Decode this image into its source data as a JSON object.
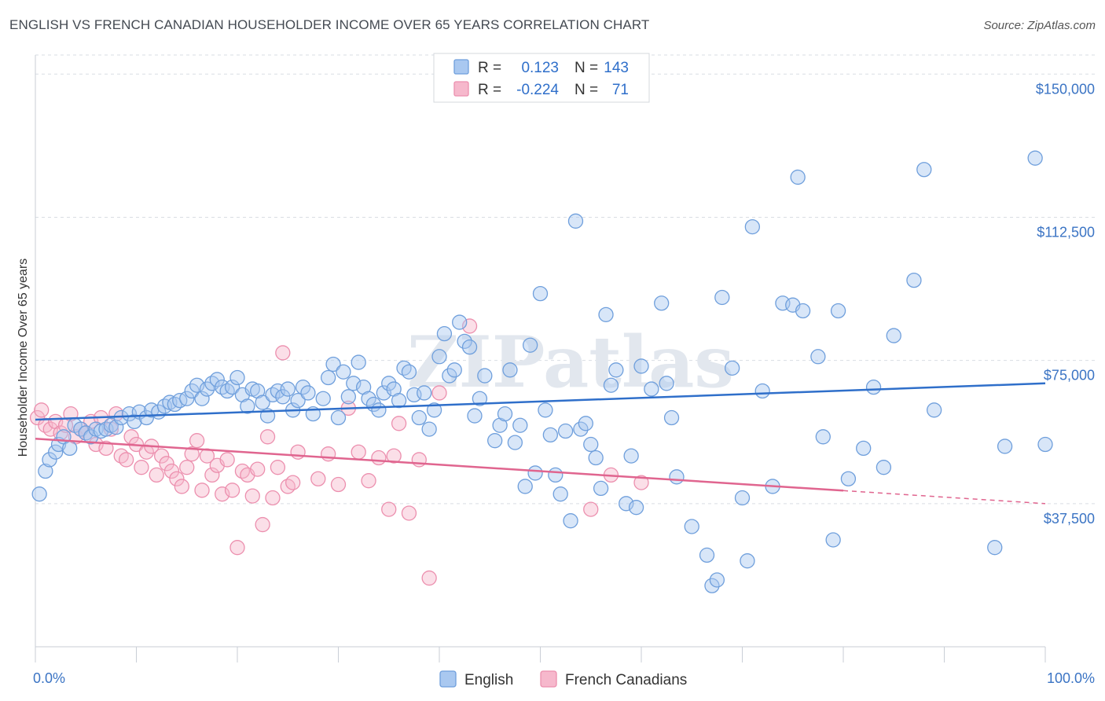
{
  "title": "ENGLISH VS FRENCH CANADIAN HOUSEHOLDER INCOME OVER 65 YEARS CORRELATION CHART",
  "source": "Source: ZipAtlas.com",
  "watermark": "ZIPatlas",
  "colors": {
    "english_fill": "#a9c8f0",
    "english_stroke": "#6f9fdc",
    "english_line": "#2f6fca",
    "french_fill": "#f6b8cc",
    "french_stroke": "#ec8fae",
    "french_line": "#e0658f",
    "axis_label": "#3b74c4",
    "grid": "#d9dde3"
  },
  "legend": {
    "rows": [
      {
        "r_label": "R =",
        "r_value": "0.123",
        "n_label": "N =",
        "n_value": "143"
      },
      {
        "r_label": "R =",
        "r_value": "-0.224",
        "n_label": "N =",
        "n_value": "71"
      }
    ]
  },
  "chart_data": {
    "type": "scatter",
    "title": "ENGLISH VS FRENCH CANADIAN HOUSEHOLDER INCOME OVER 65 YEARS CORRELATION CHART",
    "xlabel": "",
    "ylabel": "Householder Income Over 65 years",
    "xlim": [
      0,
      100
    ],
    "ylim": [
      0,
      155000
    ],
    "x_tick_labels": [
      "0.0%",
      "100.0%"
    ],
    "y_ticks": [
      37500,
      75000,
      112500,
      150000
    ],
    "y_tick_labels": [
      "$37,500",
      "$75,000",
      "$112,500",
      "$150,000"
    ],
    "grid": true,
    "legend_position": "top-center",
    "series": [
      {
        "name": "English",
        "r": 0.123,
        "n": 143,
        "trend": {
          "x": [
            0,
            100
          ],
          "y": [
            59500,
            69000
          ]
        },
        "points": [
          [
            0.4,
            40000
          ],
          [
            1,
            46000
          ],
          [
            1.4,
            49000
          ],
          [
            2,
            51000
          ],
          [
            2.3,
            53000
          ],
          [
            2.8,
            55000
          ],
          [
            3.4,
            52000
          ],
          [
            3.9,
            58000
          ],
          [
            4.5,
            57000
          ],
          [
            5,
            56000
          ],
          [
            5.5,
            55000
          ],
          [
            6,
            57000
          ],
          [
            6.5,
            56500
          ],
          [
            7,
            57000
          ],
          [
            7.5,
            58000
          ],
          [
            8,
            57500
          ],
          [
            8.5,
            60000
          ],
          [
            9.3,
            61000
          ],
          [
            9.8,
            59000
          ],
          [
            10.3,
            61500
          ],
          [
            11,
            60000
          ],
          [
            11.5,
            62000
          ],
          [
            12.2,
            61500
          ],
          [
            12.8,
            63000
          ],
          [
            13.3,
            64000
          ],
          [
            13.8,
            63500
          ],
          [
            14.3,
            64500
          ],
          [
            15,
            65000
          ],
          [
            15.5,
            67000
          ],
          [
            16,
            68500
          ],
          [
            16.5,
            65000
          ],
          [
            17,
            67500
          ],
          [
            17.5,
            69000
          ],
          [
            18,
            70000
          ],
          [
            18.5,
            68000
          ],
          [
            19,
            67000
          ],
          [
            19.5,
            68000
          ],
          [
            20,
            70500
          ],
          [
            20.5,
            66000
          ],
          [
            21,
            63000
          ],
          [
            21.5,
            67500
          ],
          [
            22,
            67000
          ],
          [
            22.5,
            64000
          ],
          [
            23,
            60500
          ],
          [
            23.5,
            66000
          ],
          [
            24,
            67000
          ],
          [
            24.5,
            65500
          ],
          [
            25,
            67500
          ],
          [
            25.5,
            62000
          ],
          [
            26,
            64500
          ],
          [
            26.5,
            68000
          ],
          [
            27,
            66500
          ],
          [
            27.5,
            61000
          ],
          [
            28.5,
            65000
          ],
          [
            29,
            70500
          ],
          [
            29.5,
            74000
          ],
          [
            30,
            60000
          ],
          [
            30.5,
            72000
          ],
          [
            31,
            65500
          ],
          [
            31.5,
            69000
          ],
          [
            32,
            74500
          ],
          [
            32.5,
            68000
          ],
          [
            33,
            65000
          ],
          [
            33.5,
            63500
          ],
          [
            34,
            62000
          ],
          [
            34.5,
            66500
          ],
          [
            35,
            69000
          ],
          [
            35.5,
            67500
          ],
          [
            36,
            64500
          ],
          [
            36.5,
            73000
          ],
          [
            37,
            72000
          ],
          [
            37.5,
            66000
          ],
          [
            38,
            60000
          ],
          [
            38.5,
            66500
          ],
          [
            39,
            57000
          ],
          [
            39.5,
            62000
          ],
          [
            40,
            76000
          ],
          [
            40.5,
            82000
          ],
          [
            41,
            71000
          ],
          [
            41.5,
            72500
          ],
          [
            42,
            85000
          ],
          [
            42.5,
            80000
          ],
          [
            43,
            78500
          ],
          [
            43.5,
            60500
          ],
          [
            44,
            65000
          ],
          [
            44.5,
            71000
          ],
          [
            45.5,
            54000
          ],
          [
            46,
            58000
          ],
          [
            46.5,
            61000
          ],
          [
            47,
            72500
          ],
          [
            47.5,
            53500
          ],
          [
            48,
            58000
          ],
          [
            48.5,
            42000
          ],
          [
            49,
            79000
          ],
          [
            49.5,
            45500
          ],
          [
            50,
            92500
          ],
          [
            50.5,
            62000
          ],
          [
            51,
            55500
          ],
          [
            51.5,
            45000
          ],
          [
            52,
            40000
          ],
          [
            52.5,
            56500
          ],
          [
            53,
            33000
          ],
          [
            53.5,
            111500
          ],
          [
            54,
            57000
          ],
          [
            54.5,
            58500
          ],
          [
            55,
            53000
          ],
          [
            55.5,
            49500
          ],
          [
            56,
            41500
          ],
          [
            56.5,
            87000
          ],
          [
            57,
            68500
          ],
          [
            57.5,
            72500
          ],
          [
            58.5,
            37500
          ],
          [
            59,
            50000
          ],
          [
            59.5,
            36500
          ],
          [
            60,
            73500
          ],
          [
            61,
            67500
          ],
          [
            62,
            90000
          ],
          [
            62.5,
            69000
          ],
          [
            63,
            60000
          ],
          [
            63.5,
            44500
          ],
          [
            65,
            31500
          ],
          [
            66.5,
            24000
          ],
          [
            67,
            16000
          ],
          [
            67.5,
            17500
          ],
          [
            68,
            91500
          ],
          [
            69,
            73000
          ],
          [
            70,
            39000
          ],
          [
            70.5,
            22500
          ],
          [
            71,
            110000
          ],
          [
            72,
            67000
          ],
          [
            73,
            42000
          ],
          [
            74,
            90000
          ],
          [
            75,
            89500
          ],
          [
            75.5,
            123000
          ],
          [
            76,
            88000
          ],
          [
            77.5,
            76000
          ],
          [
            78,
            55000
          ],
          [
            79,
            28000
          ],
          [
            79.5,
            88000
          ],
          [
            80.5,
            44000
          ],
          [
            82,
            52000
          ],
          [
            83,
            68000
          ],
          [
            84,
            47000
          ],
          [
            85,
            81500
          ],
          [
            87,
            96000
          ],
          [
            88,
            125000
          ],
          [
            89,
            62000
          ],
          [
            95,
            26000
          ],
          [
            96,
            52500
          ],
          [
            99,
            128000
          ],
          [
            100,
            53000
          ]
        ]
      },
      {
        "name": "French Canadians",
        "r": -0.224,
        "n": 71,
        "trend": {
          "x": [
            0,
            100
          ],
          "y": [
            54500,
            37500
          ]
        },
        "trend_solid_until_x": 80,
        "points": [
          [
            0.2,
            60000
          ],
          [
            0.6,
            62000
          ],
          [
            1,
            58000
          ],
          [
            1.5,
            57000
          ],
          [
            2,
            59000
          ],
          [
            2.5,
            56000
          ],
          [
            3,
            58000
          ],
          [
            3.5,
            61000
          ],
          [
            4,
            55000
          ],
          [
            4.5,
            57000
          ],
          [
            5,
            56000
          ],
          [
            5.5,
            59000
          ],
          [
            6,
            53000
          ],
          [
            6.5,
            60000
          ],
          [
            7,
            52000
          ],
          [
            7.5,
            57000
          ],
          [
            8,
            61000
          ],
          [
            8.5,
            50000
          ],
          [
            9,
            49000
          ],
          [
            9.5,
            55000
          ],
          [
            10,
            53000
          ],
          [
            10.5,
            47000
          ],
          [
            11,
            51000
          ],
          [
            11.5,
            52500
          ],
          [
            12,
            45000
          ],
          [
            12.5,
            50000
          ],
          [
            13,
            48000
          ],
          [
            13.5,
            46000
          ],
          [
            14,
            44000
          ],
          [
            14.5,
            42000
          ],
          [
            15,
            47000
          ],
          [
            15.5,
            50500
          ],
          [
            16,
            54000
          ],
          [
            16.5,
            41000
          ],
          [
            17,
            50000
          ],
          [
            17.5,
            45000
          ],
          [
            18,
            47500
          ],
          [
            18.5,
            40000
          ],
          [
            19,
            49000
          ],
          [
            19.5,
            41000
          ],
          [
            20,
            26000
          ],
          [
            20.5,
            46000
          ],
          [
            21,
            45000
          ],
          [
            21.5,
            39500
          ],
          [
            22,
            46500
          ],
          [
            22.5,
            32000
          ],
          [
            23,
            55000
          ],
          [
            23.5,
            39000
          ],
          [
            24,
            47000
          ],
          [
            24.5,
            77000
          ],
          [
            25,
            42000
          ],
          [
            25.5,
            43000
          ],
          [
            26,
            51000
          ],
          [
            28,
            44000
          ],
          [
            29,
            50500
          ],
          [
            30,
            42500
          ],
          [
            31,
            62500
          ],
          [
            32,
            51000
          ],
          [
            33,
            43500
          ],
          [
            34,
            49500
          ],
          [
            35,
            36000
          ],
          [
            35.5,
            50000
          ],
          [
            36,
            58500
          ],
          [
            37,
            35000
          ],
          [
            38,
            49000
          ],
          [
            39,
            18000
          ],
          [
            40,
            66500
          ],
          [
            43,
            84000
          ],
          [
            55,
            36000
          ],
          [
            57,
            45000
          ],
          [
            60,
            43000
          ]
        ]
      }
    ]
  },
  "bottom_legend": [
    {
      "label": "English"
    },
    {
      "label": "French Canadians"
    }
  ]
}
